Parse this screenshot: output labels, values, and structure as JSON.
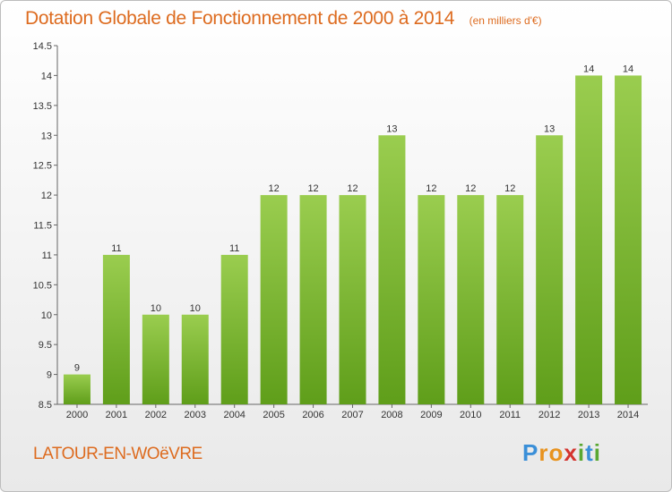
{
  "chart_data": {
    "type": "bar",
    "title": "Dotation Globale de Fonctionnement de 2000 à 2014",
    "subtitle": "(en milliers d'€)",
    "categories": [
      "2000",
      "2001",
      "2002",
      "2003",
      "2004",
      "2005",
      "2006",
      "2007",
      "2008",
      "2009",
      "2010",
      "2011",
      "2012",
      "2013",
      "2014"
    ],
    "values": [
      9,
      11,
      10,
      10,
      11,
      12,
      12,
      12,
      13,
      12,
      12,
      12,
      13,
      14,
      14
    ],
    "value_labels": [
      "9",
      "11",
      "10",
      "10",
      "11",
      "12",
      "12",
      "12",
      "13",
      "12",
      "12",
      "12",
      "13",
      "14",
      "14"
    ],
    "yticks": [
      "8.5",
      "9",
      "9.5",
      "10",
      "10.5",
      "11",
      "11.5",
      "12",
      "12.5",
      "13",
      "13.5",
      "14",
      "14.5"
    ],
    "ylim": [
      8.5,
      14.5
    ],
    "xlabel": "",
    "ylabel": "",
    "grid": false,
    "colors": {
      "bar_top": "#9acd4f",
      "bar_bottom": "#5f9e1a",
      "text_accent": "#dd6b1f"
    }
  },
  "footer": {
    "town": "LATOUR-EN-WOëVRE",
    "logo_letters": [
      {
        "ch": "P",
        "color": "#3a8fd8"
      },
      {
        "ch": "r",
        "color": "#e8931f"
      },
      {
        "ch": "o",
        "color": "#e8931f"
      },
      {
        "ch": "x",
        "color": "#d4342e"
      },
      {
        "ch": "i",
        "color": "#5aa832"
      },
      {
        "ch": "t",
        "color": "#3a8fd8"
      },
      {
        "ch": "i",
        "color": "#5aa832"
      }
    ]
  }
}
